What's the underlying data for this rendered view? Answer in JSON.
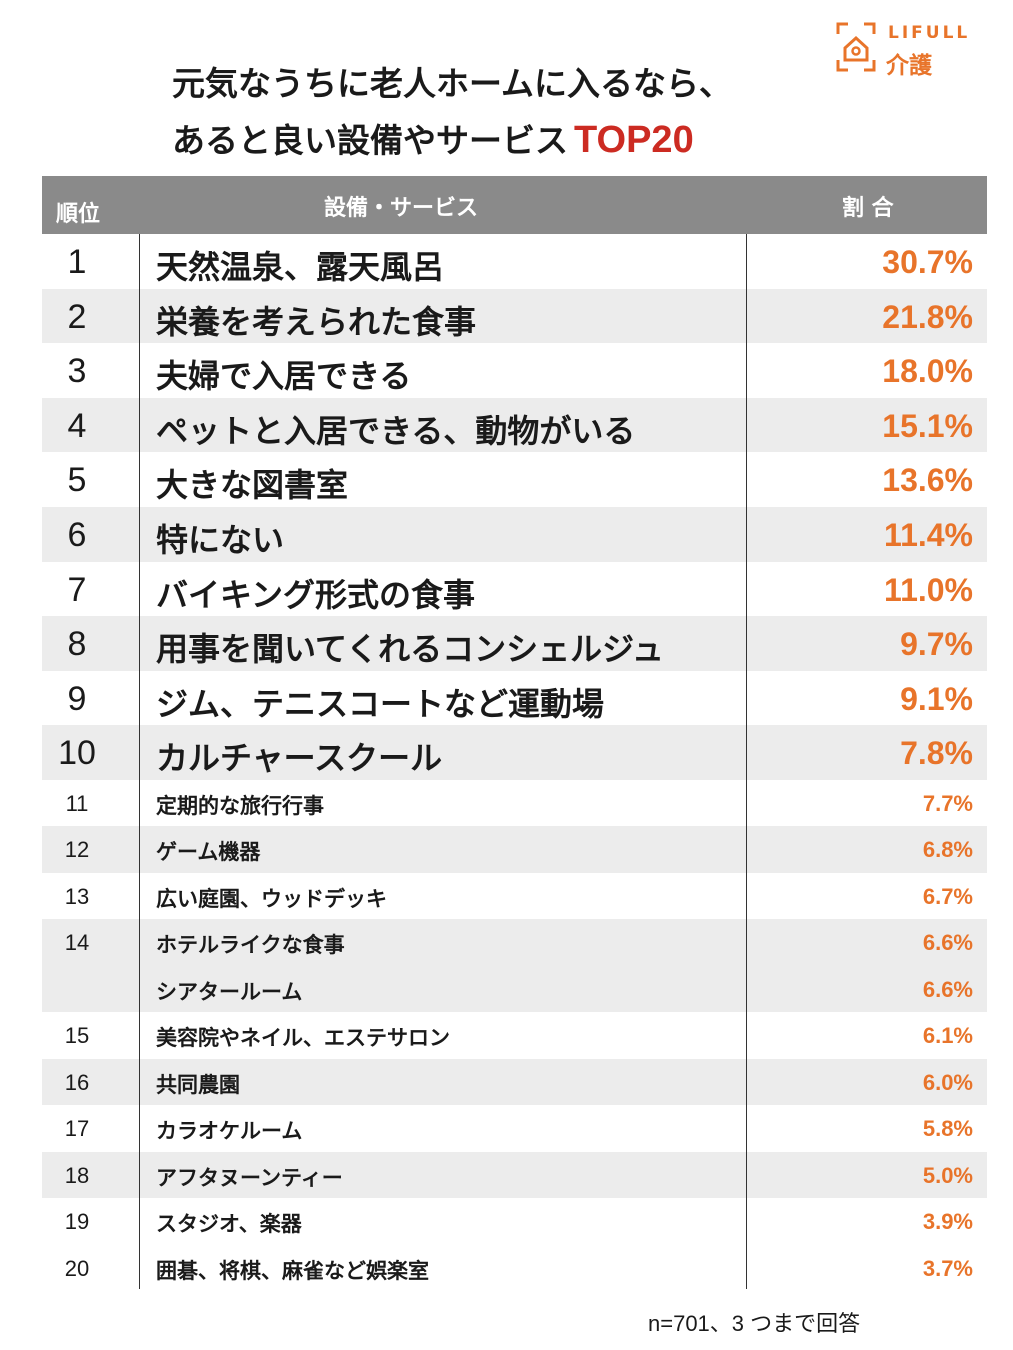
{
  "logo": {
    "icon": "house-bracket-icon",
    "brand": "LIFULL",
    "sub": "介護",
    "color": "#e8742a"
  },
  "title": {
    "line1": "元気なうちに老人ホームに入るなら、",
    "line2": "あると良い設備やサービス",
    "accent": "TOP20",
    "accent_color": "#cc2b22"
  },
  "header": {
    "rank": "順位",
    "item": "設備・サービス",
    "pct": "割 合"
  },
  "chart_data": {
    "type": "table",
    "columns": [
      "順位",
      "設備・サービス",
      "割 合"
    ],
    "rows": [
      {
        "rank": "1",
        "item": "天然温泉、露天風呂",
        "pct": "30.7%"
      },
      {
        "rank": "2",
        "item": "栄養を考えられた食事",
        "pct": "21.8%"
      },
      {
        "rank": "3",
        "item": "夫婦で入居できる",
        "pct": "18.0%"
      },
      {
        "rank": "4",
        "item": "ペットと入居できる、動物がいる",
        "pct": "15.1%"
      },
      {
        "rank": "5",
        "item": "大きな図書室",
        "pct": "13.6%"
      },
      {
        "rank": "6",
        "item": "特にない",
        "pct": "11.4%"
      },
      {
        "rank": "7",
        "item": "バイキング形式の食事",
        "pct": "11.0%"
      },
      {
        "rank": "8",
        "item": "用事を聞いてくれるコンシェルジュ",
        "pct": "9.7%"
      },
      {
        "rank": "9",
        "item": "ジム、テニスコートなど運動場",
        "pct": "9.1%"
      },
      {
        "rank": "10",
        "item": "カルチャースクール",
        "pct": "7.8%"
      },
      {
        "rank": "11",
        "item": "定期的な旅行行事",
        "pct": "7.7%"
      },
      {
        "rank": "12",
        "item": "ゲーム機器",
        "pct": "6.8%"
      },
      {
        "rank": "13",
        "item": "広い庭園、ウッドデッキ",
        "pct": "6.7%"
      },
      {
        "rank": "14",
        "item": "ホテルライクな食事",
        "pct": "6.6%"
      },
      {
        "rank": "",
        "item": "シアタールーム",
        "pct": "6.6%"
      },
      {
        "rank": "15",
        "item": "美容院やネイル、エステサロン",
        "pct": "6.1%"
      },
      {
        "rank": "16",
        "item": "共同農園",
        "pct": "6.0%"
      },
      {
        "rank": "17",
        "item": "カラオケルーム",
        "pct": "5.8%"
      },
      {
        "rank": "18",
        "item": "アフタヌーンティー",
        "pct": "5.0%"
      },
      {
        "rank": "19",
        "item": "スタジオ、楽器",
        "pct": "3.9%"
      },
      {
        "rank": "20",
        "item": "囲碁、将棋、麻雀など娯楽室",
        "pct": "3.7%"
      }
    ],
    "value_color": "#e8742a",
    "header_bg": "#8a8a8a",
    "stripe_bg": "#ececec"
  },
  "note": "n=701、3 つまで回答"
}
